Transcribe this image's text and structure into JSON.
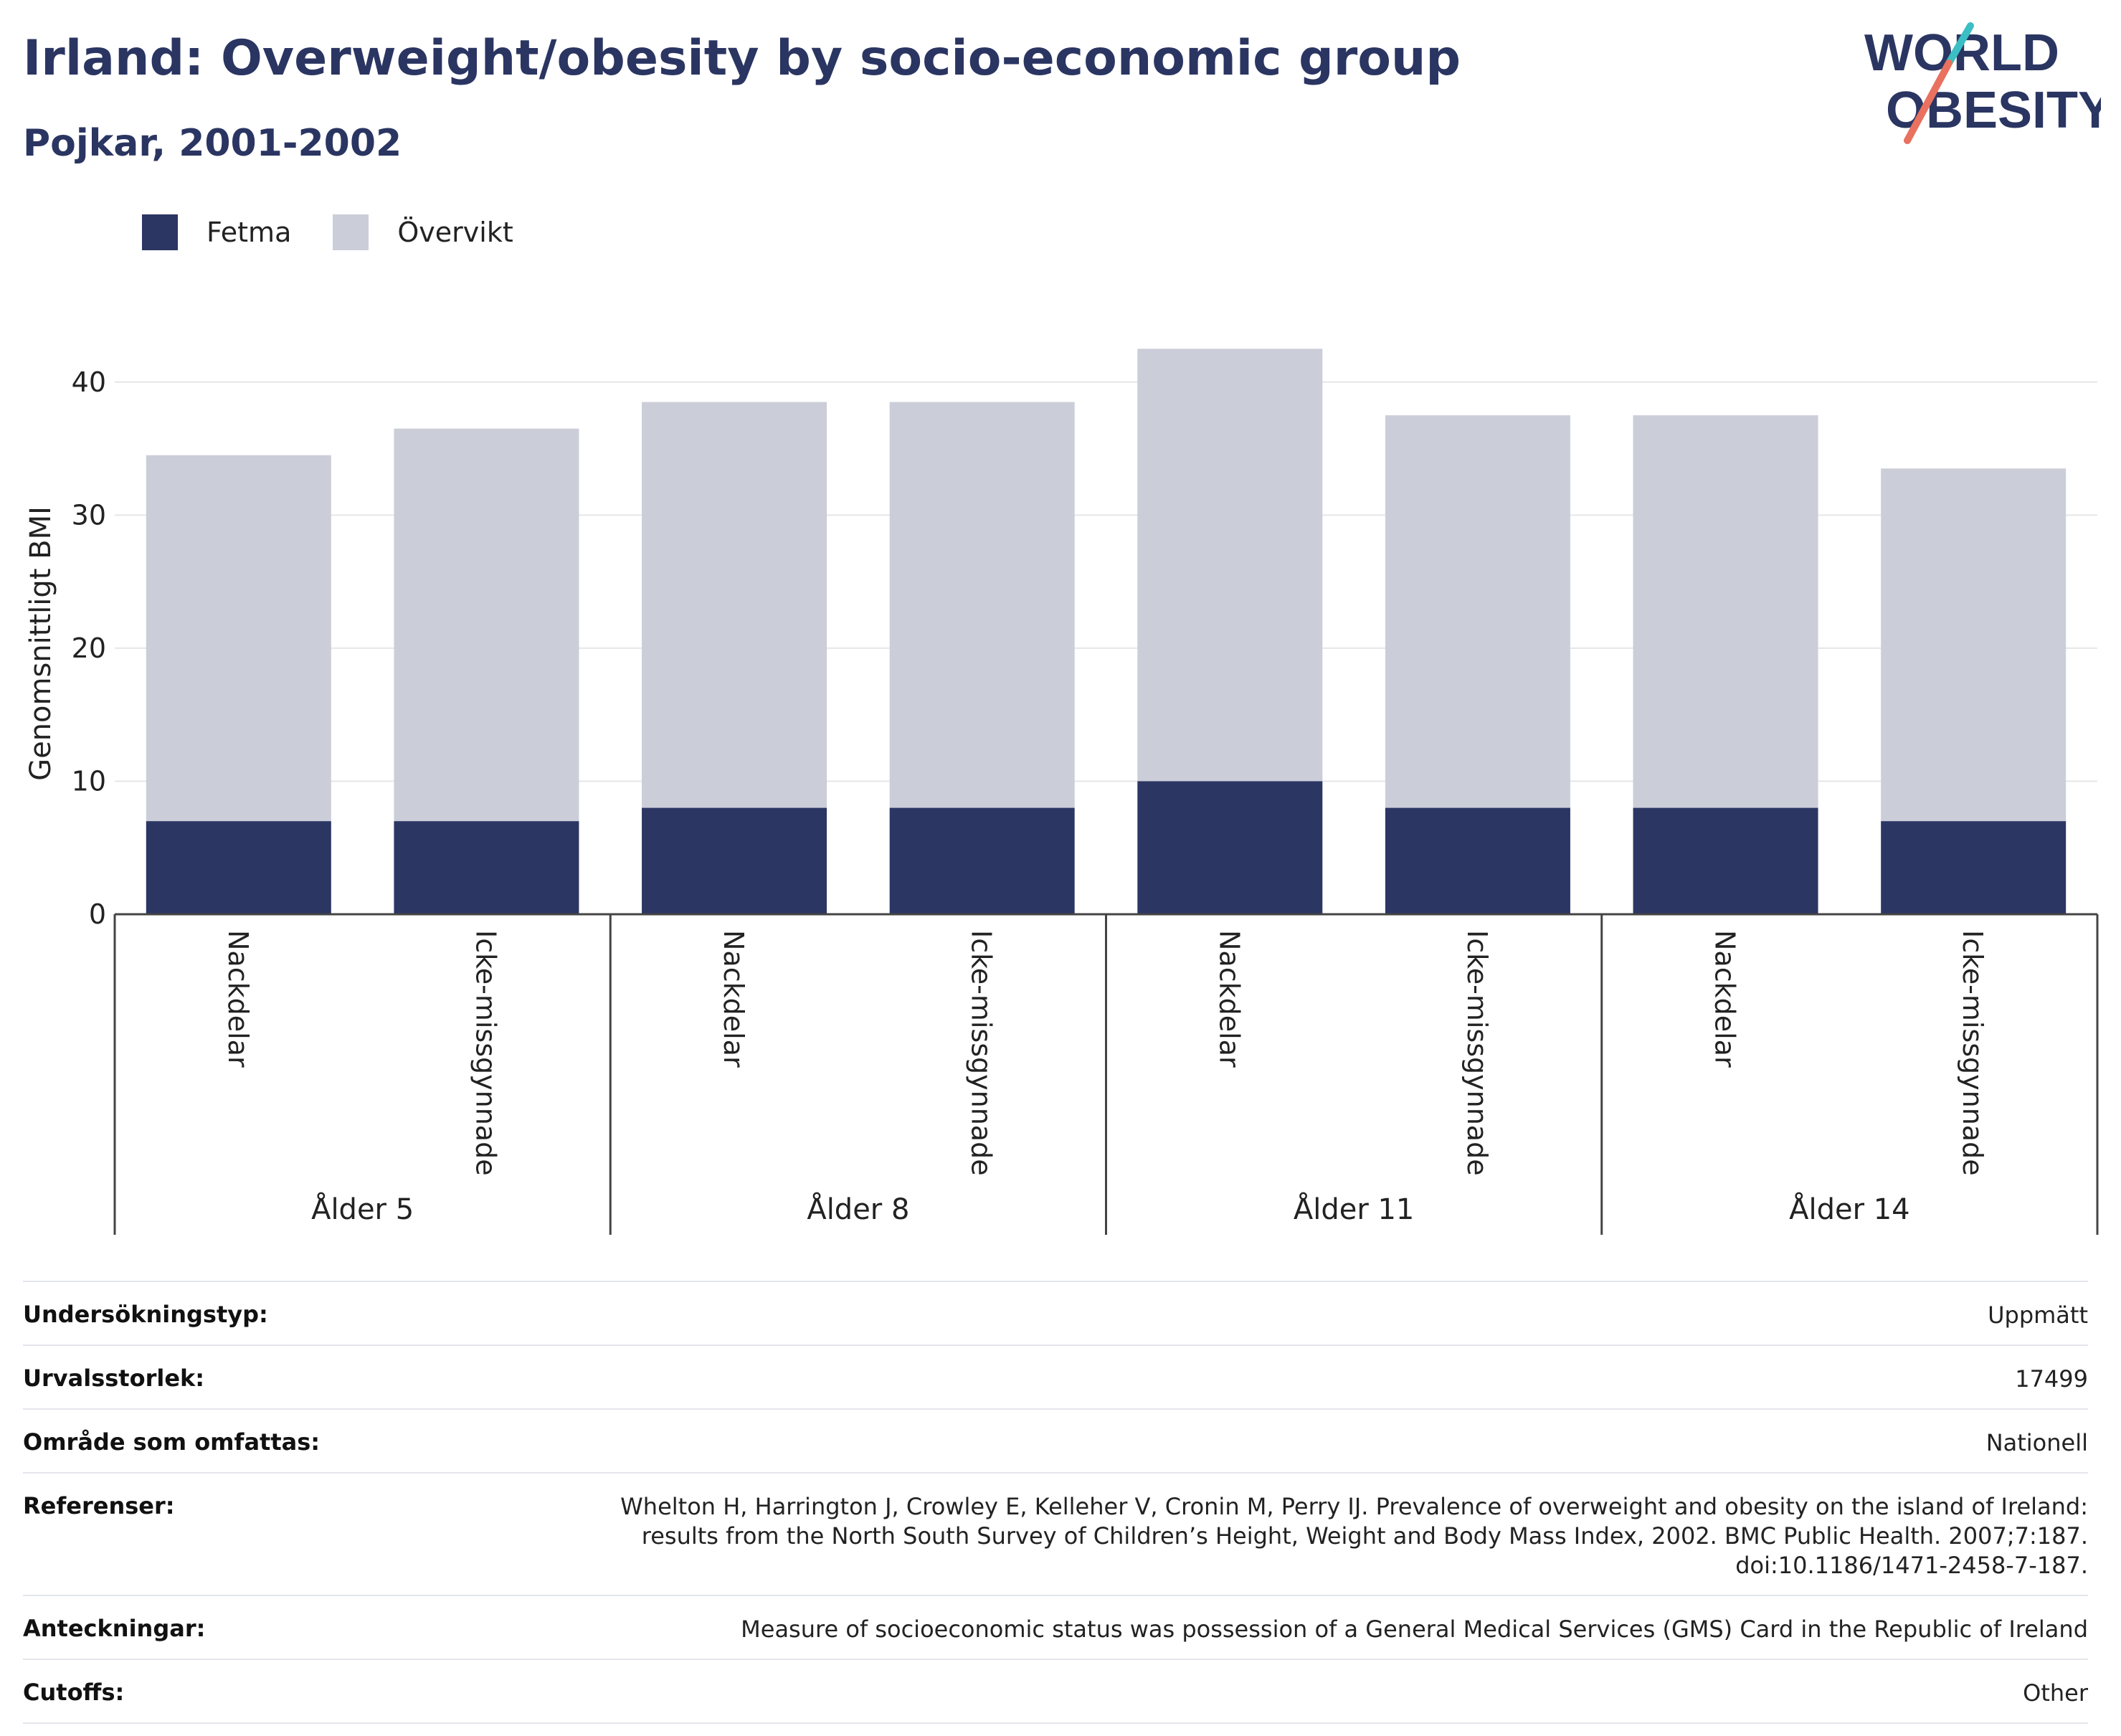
{
  "header": {
    "title": "Irland: Overweight/obesity by socio-economic group",
    "subtitle": "Pojkar, 2001-2002"
  },
  "logo": {
    "line1": "WORLD",
    "line2": "OBESITY",
    "colors": {
      "text": "#2a3562",
      "slash_top": "#3bbfc4",
      "slash_bottom": "#e8715f"
    }
  },
  "colors": {
    "fetma": "#2b3663",
    "overvikt": "#cbcdd9",
    "grid": "#e6e6e6",
    "axis": "#444444"
  },
  "legend": {
    "items": [
      {
        "label": "Fetma",
        "color": "#2b3663"
      },
      {
        "label": "Övervikt",
        "color": "#cbcdd9"
      }
    ]
  },
  "chart_data": {
    "type": "bar",
    "stacked": true,
    "ylabel": "Genomsnittligt BMI",
    "ylim": [
      0,
      45
    ],
    "yticks": [
      0,
      10,
      20,
      30,
      40
    ],
    "grid": true,
    "legend_position": "top-left",
    "groups": [
      {
        "label": "Ålder 5",
        "categories": [
          "Nackdelar",
          "Icke-missgynnade"
        ]
      },
      {
        "label": "Ålder 8",
        "categories": [
          "Nackdelar",
          "Icke-missgynnade"
        ]
      },
      {
        "label": "Ålder 11",
        "categories": [
          "Nackdelar",
          "Icke-missgynnade"
        ]
      },
      {
        "label": "Ålder 14",
        "categories": [
          "Nackdelar",
          "Icke-missgynnade"
        ]
      }
    ],
    "series": [
      {
        "name": "Fetma",
        "color": "#2b3663",
        "values": [
          7,
          7,
          8,
          8,
          10,
          8,
          8,
          7
        ]
      },
      {
        "name": "Övervikt",
        "color": "#cbcdd9",
        "values": [
          27.5,
          29.5,
          30.5,
          30.5,
          32.5,
          29.5,
          29.5,
          26.5
        ]
      }
    ]
  },
  "meta": {
    "rows": [
      {
        "label": "Undersökningstyp:",
        "value": "Uppmätt"
      },
      {
        "label": "Urvalsstorlek:",
        "value": "17499"
      },
      {
        "label": "Område som omfattas:",
        "value": "Nationell"
      },
      {
        "label": "Referenser:",
        "value": "Whelton H, Harrington J, Crowley E, Kelleher V, Cronin M, Perry IJ. Prevalence of overweight and obesity on the island of Ireland: results from the North South Survey of Children’s Height, Weight and Body Mass Index, 2002. BMC Public Health. 2007;7:187. doi:10.1186/1471-2458-7-187."
      },
      {
        "label": "Anteckningar:",
        "value": "Measure of socioeconomic status was possession of a General Medical Services (GMS) Card in the Republic of Ireland"
      },
      {
        "label": "Cutoffs:",
        "value": "Other"
      }
    ]
  }
}
